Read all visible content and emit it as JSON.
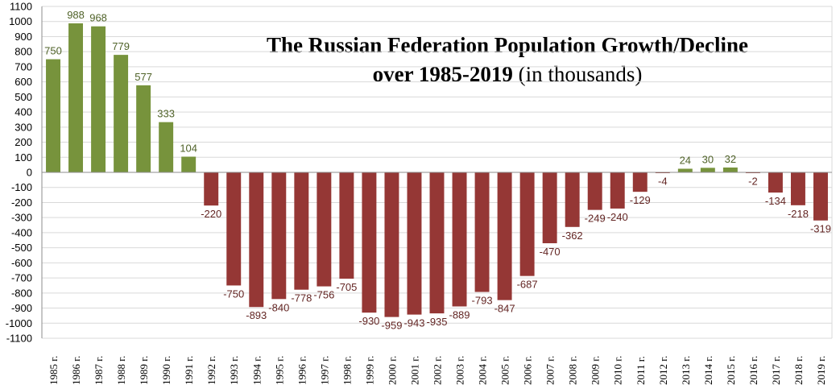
{
  "chart_data": {
    "type": "bar",
    "title_line1": "The Russian Federation Population Growth/Decline",
    "title_line2_bold": "over 1985-2019",
    "title_line2_normal": " (in thousands)",
    "categories": [
      "1985 г.",
      "1986 г.",
      "1987 г.",
      "1988 г.",
      "1989 г.",
      "1990 г.",
      "1991 г.",
      "1992 г.",
      "1993 г.",
      "1994 г.",
      "1995 г.",
      "1996 г.",
      "1997 г.",
      "1998 г.",
      "1999 г.",
      "2000 г.",
      "2001 г.",
      "2002 г.",
      "2003 г.",
      "2004 г.",
      "2005 г.",
      "2006 г.",
      "2007 г.",
      "2008 г.",
      "2009 г.",
      "2010 г.",
      "2011 г.",
      "2012 г.",
      "2013 г.",
      "2014 г.",
      "2015 г.",
      "2016 г.",
      "2017 г.",
      "2018 г.",
      "2019 г."
    ],
    "values": [
      750,
      988,
      968,
      779,
      577,
      333,
      104,
      -220,
      -750,
      -893,
      -840,
      -778,
      -756,
      -705,
      -930,
      -959,
      -943,
      -935,
      -889,
      -793,
      -847,
      -687,
      -470,
      -362,
      -249,
      -240,
      -129,
      -4,
      24,
      30,
      32,
      -2,
      -134,
      -218,
      -319
    ],
    "ylim": [
      -1100,
      1100
    ],
    "ytick_step": 100,
    "grid": true,
    "colors": {
      "positive": "#77933c",
      "negative": "#953735",
      "positive_label": "#4f6228",
      "negative_label": "#632523"
    }
  }
}
